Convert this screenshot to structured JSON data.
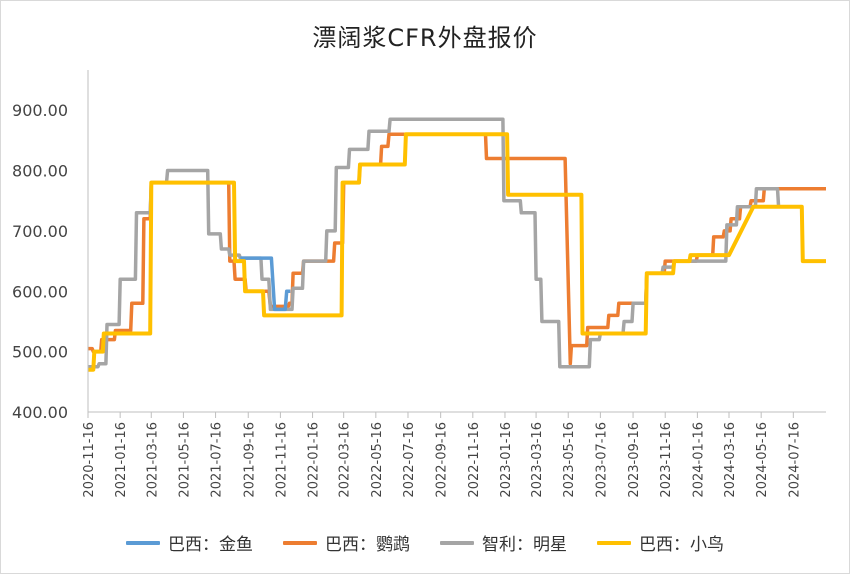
{
  "chart_data": {
    "type": "line",
    "title": "漂阔浆CFR外盘报价",
    "xlabel": "",
    "ylabel": "",
    "ylim": [
      400,
      950
    ],
    "yticks": [
      "400.00",
      "500.00",
      "600.00",
      "700.00",
      "800.00",
      "900.00"
    ],
    "xlim": [
      "2020-11-16",
      "2024-09-16"
    ],
    "xticks": [
      "2020-11-16",
      "2021-01-16",
      "2021-03-16",
      "2021-05-16",
      "2021-07-16",
      "2021-09-16",
      "2021-11-16",
      "2022-01-16",
      "2022-03-16",
      "2022-05-16",
      "2022-07-16",
      "2022-09-16",
      "2022-11-16",
      "2023-01-16",
      "2023-03-16",
      "2023-05-16",
      "2023-07-16",
      "2023-09-16",
      "2023-11-16",
      "2024-01-16",
      "2024-03-16",
      "2024-05-16",
      "2024-07-16"
    ],
    "legend_position": "bottom",
    "series": [
      {
        "name": "巴西：金鱼",
        "color": "#5b9bd5",
        "points": [
          [
            "2021-09-01",
            655
          ],
          [
            "2021-10-30",
            655
          ],
          [
            "2021-11-05",
            570
          ],
          [
            "2021-11-25",
            570
          ],
          [
            "2021-11-28",
            600
          ],
          [
            "2021-12-05",
            600
          ]
        ]
      },
      {
        "name": "巴西：鹦鹉",
        "color": "#ed7d31",
        "points": [
          [
            "2020-11-16",
            505
          ],
          [
            "2020-11-24",
            505
          ],
          [
            "2020-11-26",
            500
          ],
          [
            "2020-12-10",
            500
          ],
          [
            "2020-12-12",
            520
          ],
          [
            "2021-01-05",
            520
          ],
          [
            "2021-01-07",
            535
          ],
          [
            "2021-02-05",
            535
          ],
          [
            "2021-02-07",
            580
          ],
          [
            "2021-02-28",
            580
          ],
          [
            "2021-03-02",
            720
          ],
          [
            "2021-03-14",
            720
          ],
          [
            "2021-03-16",
            780
          ],
          [
            "2021-08-10",
            780
          ],
          [
            "2021-08-12",
            650
          ],
          [
            "2021-08-20",
            650
          ],
          [
            "2021-08-22",
            620
          ],
          [
            "2021-09-10",
            620
          ],
          [
            "2021-09-12",
            600
          ],
          [
            "2021-10-25",
            600
          ],
          [
            "2021-10-28",
            575
          ],
          [
            "2021-12-01",
            575
          ],
          [
            "2021-12-03",
            580
          ],
          [
            "2021-12-08",
            580
          ],
          [
            "2021-12-10",
            630
          ],
          [
            "2021-12-28",
            630
          ],
          [
            "2021-12-30",
            650
          ],
          [
            "2022-02-25",
            650
          ],
          [
            "2022-02-27",
            680
          ],
          [
            "2022-03-14",
            680
          ],
          [
            "2022-03-16",
            780
          ],
          [
            "2022-04-14",
            780
          ],
          [
            "2022-04-16",
            810
          ],
          [
            "2022-05-25",
            810
          ],
          [
            "2022-05-27",
            840
          ],
          [
            "2022-06-08",
            840
          ],
          [
            "2022-06-10",
            860
          ],
          [
            "2022-12-10",
            860
          ],
          [
            "2022-12-12",
            820
          ],
          [
            "2023-05-10",
            820
          ],
          [
            "2023-05-20",
            480
          ],
          [
            "2023-05-22",
            510
          ],
          [
            "2023-06-20",
            510
          ],
          [
            "2023-06-22",
            540
          ],
          [
            "2023-07-30",
            540
          ],
          [
            "2023-08-01",
            560
          ],
          [
            "2023-08-18",
            560
          ],
          [
            "2023-08-20",
            580
          ],
          [
            "2023-10-10",
            580
          ],
          [
            "2023-10-12",
            630
          ],
          [
            "2023-11-14",
            630
          ],
          [
            "2023-11-16",
            650
          ],
          [
            "2024-01-14",
            650
          ],
          [
            "2024-01-16",
            660
          ],
          [
            "2024-02-14",
            660
          ],
          [
            "2024-02-16",
            690
          ],
          [
            "2024-03-05",
            690
          ],
          [
            "2024-03-07",
            700
          ],
          [
            "2024-03-18",
            700
          ],
          [
            "2024-03-20",
            720
          ],
          [
            "2024-04-05",
            720
          ],
          [
            "2024-04-07",
            740
          ],
          [
            "2024-04-25",
            740
          ],
          [
            "2024-04-27",
            750
          ],
          [
            "2024-05-20",
            750
          ],
          [
            "2024-05-22",
            770
          ],
          [
            "2024-09-16",
            770
          ]
        ]
      },
      {
        "name": "智利：明星",
        "color": "#a5a5a5",
        "points": [
          [
            "2020-11-16",
            475
          ],
          [
            "2020-12-05",
            475
          ],
          [
            "2020-12-07",
            480
          ],
          [
            "2020-12-20",
            480
          ],
          [
            "2020-12-22",
            545
          ],
          [
            "2021-01-14",
            545
          ],
          [
            "2021-01-16",
            620
          ],
          [
            "2021-02-14",
            620
          ],
          [
            "2021-02-16",
            730
          ],
          [
            "2021-03-14",
            730
          ],
          [
            "2021-03-16",
            780
          ],
          [
            "2021-04-14",
            780
          ],
          [
            "2021-04-16",
            800
          ],
          [
            "2021-07-01",
            800
          ],
          [
            "2021-07-03",
            695
          ],
          [
            "2021-07-25",
            695
          ],
          [
            "2021-07-27",
            670
          ],
          [
            "2021-08-10",
            670
          ],
          [
            "2021-08-12",
            660
          ],
          [
            "2021-08-30",
            660
          ],
          [
            "2021-09-01",
            655
          ],
          [
            "2021-10-10",
            655
          ],
          [
            "2021-10-12",
            620
          ],
          [
            "2021-10-25",
            620
          ],
          [
            "2021-10-28",
            570
          ],
          [
            "2021-12-08",
            570
          ],
          [
            "2021-12-10",
            605
          ],
          [
            "2021-12-28",
            605
          ],
          [
            "2021-12-30",
            650
          ],
          [
            "2022-02-10",
            650
          ],
          [
            "2022-02-12",
            700
          ],
          [
            "2022-02-28",
            700
          ],
          [
            "2022-03-02",
            805
          ],
          [
            "2022-03-25",
            805
          ],
          [
            "2022-03-27",
            835
          ],
          [
            "2022-05-01",
            835
          ],
          [
            "2022-05-03",
            865
          ],
          [
            "2022-06-10",
            865
          ],
          [
            "2022-06-12",
            885
          ],
          [
            "2023-01-12",
            885
          ],
          [
            "2023-01-14",
            750
          ],
          [
            "2023-02-14",
            750
          ],
          [
            "2023-02-16",
            730
          ],
          [
            "2023-03-14",
            730
          ],
          [
            "2023-03-16",
            620
          ],
          [
            "2023-03-25",
            620
          ],
          [
            "2023-03-27",
            550
          ],
          [
            "2023-04-28",
            550
          ],
          [
            "2023-04-30",
            475
          ],
          [
            "2023-06-25",
            475
          ],
          [
            "2023-06-27",
            520
          ],
          [
            "2023-07-14",
            520
          ],
          [
            "2023-07-16",
            530
          ],
          [
            "2023-08-28",
            530
          ],
          [
            "2023-08-30",
            550
          ],
          [
            "2023-09-14",
            550
          ],
          [
            "2023-09-16",
            580
          ],
          [
            "2023-10-10",
            580
          ],
          [
            "2023-10-12",
            630
          ],
          [
            "2023-11-10",
            630
          ],
          [
            "2023-11-12",
            640
          ],
          [
            "2023-12-01",
            640
          ],
          [
            "2023-12-03",
            650
          ],
          [
            "2024-03-10",
            650
          ],
          [
            "2024-03-12",
            710
          ],
          [
            "2024-03-30",
            710
          ],
          [
            "2024-04-01",
            740
          ],
          [
            "2024-05-05",
            740
          ],
          [
            "2024-05-07",
            770
          ],
          [
            "2024-06-16",
            770
          ],
          [
            "2024-06-18",
            740
          ],
          [
            "2024-07-01",
            740
          ]
        ]
      },
      {
        "name": "巴西：小鸟",
        "color": "#ffc000",
        "points": [
          [
            "2020-11-16",
            470
          ],
          [
            "2020-11-26",
            470
          ],
          [
            "2020-11-28",
            500
          ],
          [
            "2020-12-14",
            500
          ],
          [
            "2020-12-16",
            530
          ],
          [
            "2021-03-14",
            530
          ],
          [
            "2021-03-16",
            780
          ],
          [
            "2021-08-20",
            780
          ],
          [
            "2021-08-22",
            650
          ],
          [
            "2021-09-08",
            650
          ],
          [
            "2021-09-10",
            600
          ],
          [
            "2021-10-14",
            600
          ],
          [
            "2021-10-16",
            560
          ],
          [
            "2022-03-12",
            560
          ],
          [
            "2022-03-14",
            780
          ],
          [
            "2022-04-14",
            780
          ],
          [
            "2022-04-16",
            810
          ],
          [
            "2022-07-10",
            810
          ],
          [
            "2022-07-12",
            860
          ],
          [
            "2023-01-20",
            860
          ],
          [
            "2023-01-22",
            760
          ],
          [
            "2023-06-10",
            760
          ],
          [
            "2023-06-12",
            530
          ],
          [
            "2023-10-10",
            530
          ],
          [
            "2023-10-12",
            630
          ],
          [
            "2023-12-01",
            630
          ],
          [
            "2023-12-03",
            650
          ],
          [
            "2024-01-01",
            650
          ],
          [
            "2024-01-03",
            660
          ],
          [
            "2024-03-16",
            660
          ],
          [
            "2024-05-01",
            740
          ],
          [
            "2024-08-01",
            740
          ],
          [
            "2024-08-03",
            650
          ],
          [
            "2024-09-16",
            650
          ]
        ]
      }
    ]
  }
}
